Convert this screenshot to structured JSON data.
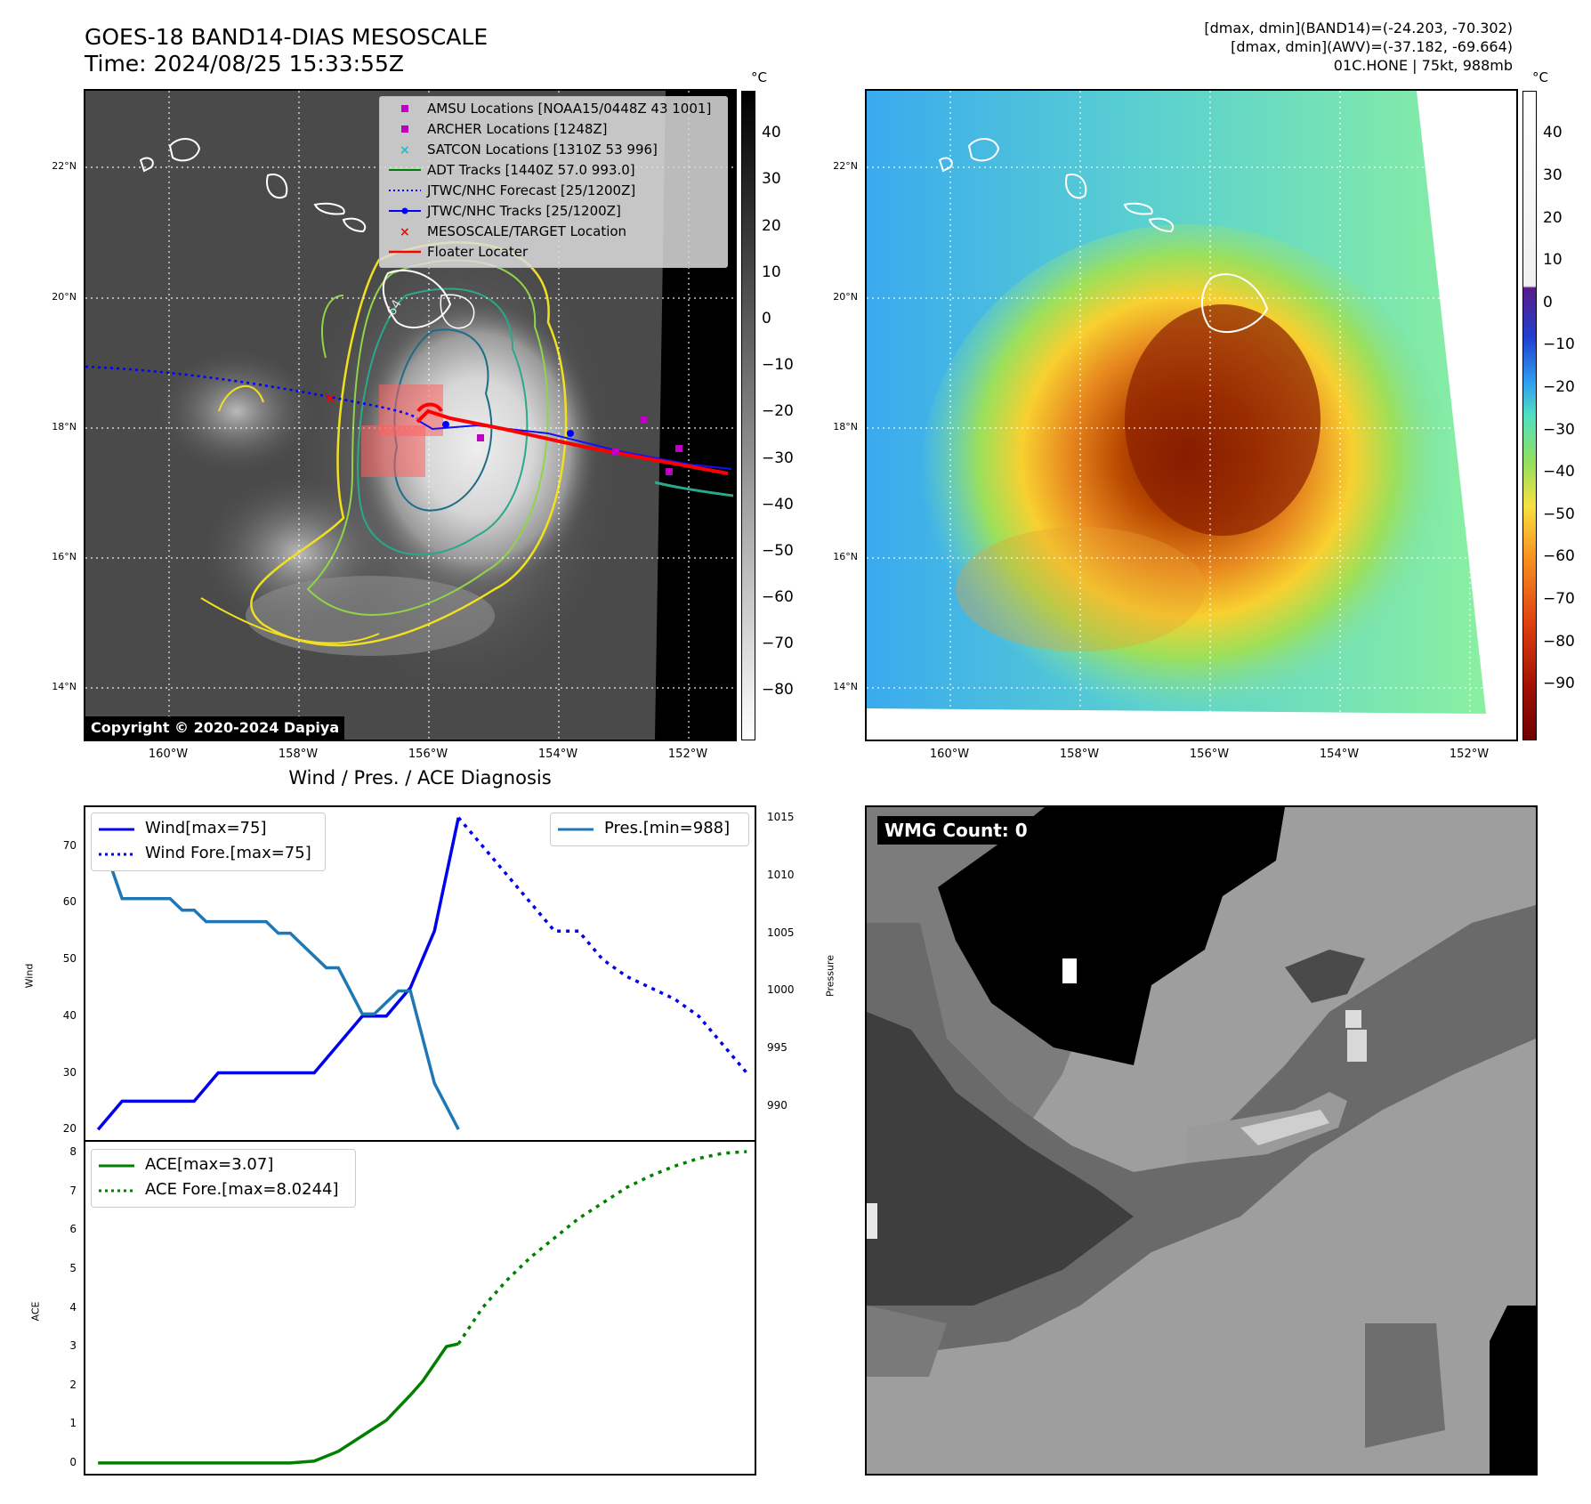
{
  "header": {
    "title_line1": "GOES-18 BAND14-DIAS MESOSCALE",
    "title_line2": "Time: 2024/08/25 15:33:55Z",
    "info_line1": "[dmax, dmin](BAND14)=(-24.203, -70.302)",
    "info_line2": "[dmax, dmin](AWV)=(-37.182, -69.664)",
    "info_line3": "01C.HONE | 75kt, 988mb"
  },
  "map": {
    "lat_labels": [
      "22°N",
      "20°N",
      "18°N",
      "16°N",
      "14°N"
    ],
    "lon_labels": [
      "160°W",
      "158°W",
      "156°W",
      "154°W",
      "152°W"
    ],
    "copyright": "Copyright © 2020-2024 Dapiya",
    "contour_label": "-64"
  },
  "ir_colorbar": {
    "unit": "°C",
    "ticks": [
      "40",
      "30",
      "20",
      "10",
      "0",
      "−10",
      "−20",
      "−30",
      "−40",
      "−50",
      "−60",
      "−70",
      "−80"
    ]
  },
  "awv_colorbar": {
    "unit": "°C",
    "ticks": [
      "40",
      "30",
      "20",
      "10",
      "0",
      "−10",
      "−20",
      "−30",
      "−40",
      "−50",
      "−60",
      "−70",
      "−80",
      "−90"
    ]
  },
  "map_legend": [
    {
      "label": "AMSU Locations [NOAA15/0448Z 43 1001]",
      "icon": "square-marker",
      "color": "#c000c0"
    },
    {
      "label": "ARCHER Locations [1248Z]",
      "icon": "square-marker",
      "color": "#c000c0"
    },
    {
      "label": "SATCON Locations [1310Z 53 996]",
      "icon": "x-marker",
      "color": "#17becf"
    },
    {
      "label": "ADT Tracks [1440Z 57.0 993.0]",
      "icon": "solid-line",
      "color": "#008000"
    },
    {
      "label": "JTWC/NHC Forecast [25/1200Z]",
      "icon": "dotted-line",
      "color": "#0000ff"
    },
    {
      "label": "JTWC/NHC Tracks [25/1200Z]",
      "icon": "line-dot",
      "color": "#0000ff"
    },
    {
      "label": "MESOSCALE/TARGET Location",
      "icon": "x-marker",
      "color": "#ff0000"
    },
    {
      "label": "Floater Locater",
      "icon": "solid-line",
      "color": "#ff0000"
    }
  ],
  "diagnosis": {
    "title": "Wind / Pres. / ACE Diagnosis",
    "wind_ylabel": "Wind",
    "pres_ylabel": "Pressure",
    "ace_ylabel": "ACE",
    "wind_legend": [
      "Wind[max=75]",
      "Wind Fore.[max=75]"
    ],
    "pres_legend": [
      "Pres.[min=988]"
    ],
    "ace_legend": [
      "ACE[max=3.07]",
      "ACE Fore.[max=8.0244]"
    ]
  },
  "wmg": {
    "label": "WMG Count: 0"
  },
  "chart_data": [
    {
      "type": "line",
      "name": "wind",
      "y_label": "Wind",
      "ylim": [
        18,
        77
      ],
      "yticks": [
        20,
        30,
        40,
        50,
        60,
        70
      ],
      "xlim": [
        -0.6,
        27.4
      ],
      "series": [
        {
          "name": "Wind[max=75]",
          "style": "solid",
          "color": "#0000ee",
          "x": [
            0,
            1,
            2,
            3,
            4,
            5,
            6,
            7,
            8,
            9,
            10,
            11,
            12,
            13,
            14,
            15
          ],
          "y": [
            20,
            25,
            25,
            25,
            25,
            30,
            30,
            30,
            30,
            30,
            35,
            40,
            40,
            45,
            55,
            75
          ]
        },
        {
          "name": "Wind Fore.[max=75]",
          "style": "dotted",
          "color": "#0000ee",
          "x": [
            15,
            16,
            17,
            18,
            19,
            20,
            21,
            22,
            23,
            24,
            25,
            26,
            27
          ],
          "y": [
            75,
            70,
            65,
            60,
            55,
            55,
            50,
            47,
            45,
            43,
            40,
            35,
            30
          ]
        }
      ]
    },
    {
      "type": "line",
      "name": "pressure",
      "y_label": "Pressure",
      "ylim": [
        987,
        1016
      ],
      "yticks": [
        990,
        995,
        1000,
        1005,
        1010,
        1015
      ],
      "xlim": [
        -0.6,
        27.4
      ],
      "series": [
        {
          "name": "Pres.[min=988]",
          "style": "solid",
          "color": "#1f77b4",
          "x": [
            0,
            0.5,
            1,
            1.5,
            2,
            2.5,
            3,
            3.5,
            4,
            4.5,
            5,
            5.5,
            6,
            6.5,
            7,
            7.5,
            8,
            8.5,
            9,
            9.5,
            10,
            10.5,
            11,
            11.5,
            12,
            12.5,
            13,
            13.5,
            14,
            14.5,
            15
          ],
          "y": [
            1015,
            1011,
            1008,
            1008,
            1008,
            1008,
            1008,
            1007,
            1007,
            1006,
            1006,
            1006,
            1006,
            1006,
            1006,
            1005,
            1005,
            1004,
            1003,
            1002,
            1002,
            1000,
            998,
            998,
            999,
            1000,
            1000,
            996,
            992,
            990,
            988
          ]
        }
      ]
    },
    {
      "type": "line",
      "name": "ace",
      "y_label": "ACE",
      "ylim": [
        -0.3,
        8.3
      ],
      "yticks": [
        0,
        1,
        2,
        3,
        4,
        5,
        6,
        7,
        8
      ],
      "xlim": [
        -0.6,
        27.4
      ],
      "series": [
        {
          "name": "ACE[max=3.07]",
          "style": "solid",
          "color": "#008000",
          "x": [
            0,
            2,
            4,
            6,
            8,
            9,
            10,
            11,
            12,
            13,
            13.5,
            14,
            14.5,
            15
          ],
          "y": [
            0,
            0,
            0,
            0,
            0,
            0.05,
            0.3,
            0.7,
            1.1,
            1.75,
            2.1,
            2.55,
            3.0,
            3.07
          ]
        },
        {
          "name": "ACE Fore.[max=8.0244]",
          "style": "dotted",
          "color": "#008000",
          "x": [
            15,
            16,
            17,
            18,
            19,
            20,
            21,
            22,
            23,
            24,
            25,
            26,
            27
          ],
          "y": [
            3.07,
            4.0,
            4.7,
            5.3,
            5.8,
            6.3,
            6.7,
            7.1,
            7.4,
            7.65,
            7.85,
            7.98,
            8.0244
          ]
        }
      ]
    }
  ]
}
